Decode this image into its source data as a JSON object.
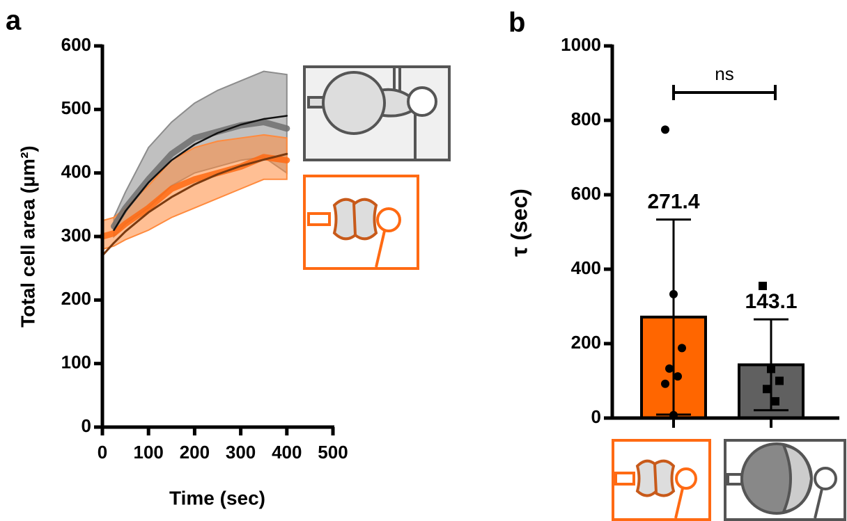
{
  "chart_data": [
    {
      "type": "line",
      "label": "a",
      "xlabel": "Time (sec)",
      "ylabel": "Total cell area (µm²)",
      "x": [
        0,
        25,
        50,
        100,
        150,
        200,
        250,
        300,
        350,
        400
      ],
      "xlim": [
        0,
        500
      ],
      "xticks": [
        0,
        100,
        200,
        300,
        400,
        500
      ],
      "ylim": [
        0,
        600
      ],
      "yticks": [
        0,
        100,
        200,
        300,
        400,
        500,
        600
      ],
      "series": [
        {
          "color": "#6e6e6e",
          "band_color": "#8c8c8c",
          "line_width": 9,
          "values": [
            null,
            316,
            345,
            390,
            430,
            455,
            465,
            475,
            480,
            470
          ],
          "upper": [
            null,
            330,
            370,
            440,
            480,
            510,
            530,
            545,
            560,
            555
          ],
          "lower": [
            null,
            300,
            320,
            345,
            380,
            400,
            410,
            420,
            425,
            400
          ]
        },
        {
          "color": "#ff6a13",
          "band_color": "#ff8a3d",
          "line_width": 9,
          "values": [
            300,
            305,
            320,
            345,
            375,
            390,
            400,
            410,
            425,
            420
          ],
          "upper": [
            325,
            330,
            345,
            380,
            420,
            440,
            450,
            455,
            460,
            455
          ],
          "lower": [
            280,
            285,
            295,
            310,
            330,
            345,
            360,
            375,
            390,
            390
          ]
        },
        {
          "color": "#111111",
          "line_width": 2.5,
          "values": [
            null,
            310,
            340,
            385,
            420,
            445,
            463,
            476,
            485,
            490
          ]
        },
        {
          "color": "#7a3a10",
          "line_width": 3,
          "values": [
            270,
            290,
            308,
            338,
            362,
            382,
            398,
            411,
            421,
            430
          ]
        }
      ]
    },
    {
      "type": "bar",
      "label": "b",
      "ylabel": "τ (sec)",
      "categories": [
        null,
        null
      ],
      "values": [
        271.4,
        143.1
      ],
      "errors": [
        262,
        122
      ],
      "colors": [
        "#ff6600",
        "#606060"
      ],
      "points": [
        [
          775,
          333,
          188,
          133,
          112,
          92,
          8
        ],
        [
          355,
          132,
          100,
          78,
          45
        ]
      ],
      "ylim": [
        0,
        1000
      ],
      "yticks": [
        0,
        200,
        400,
        600,
        800,
        1000
      ],
      "annotation": "ns"
    }
  ]
}
